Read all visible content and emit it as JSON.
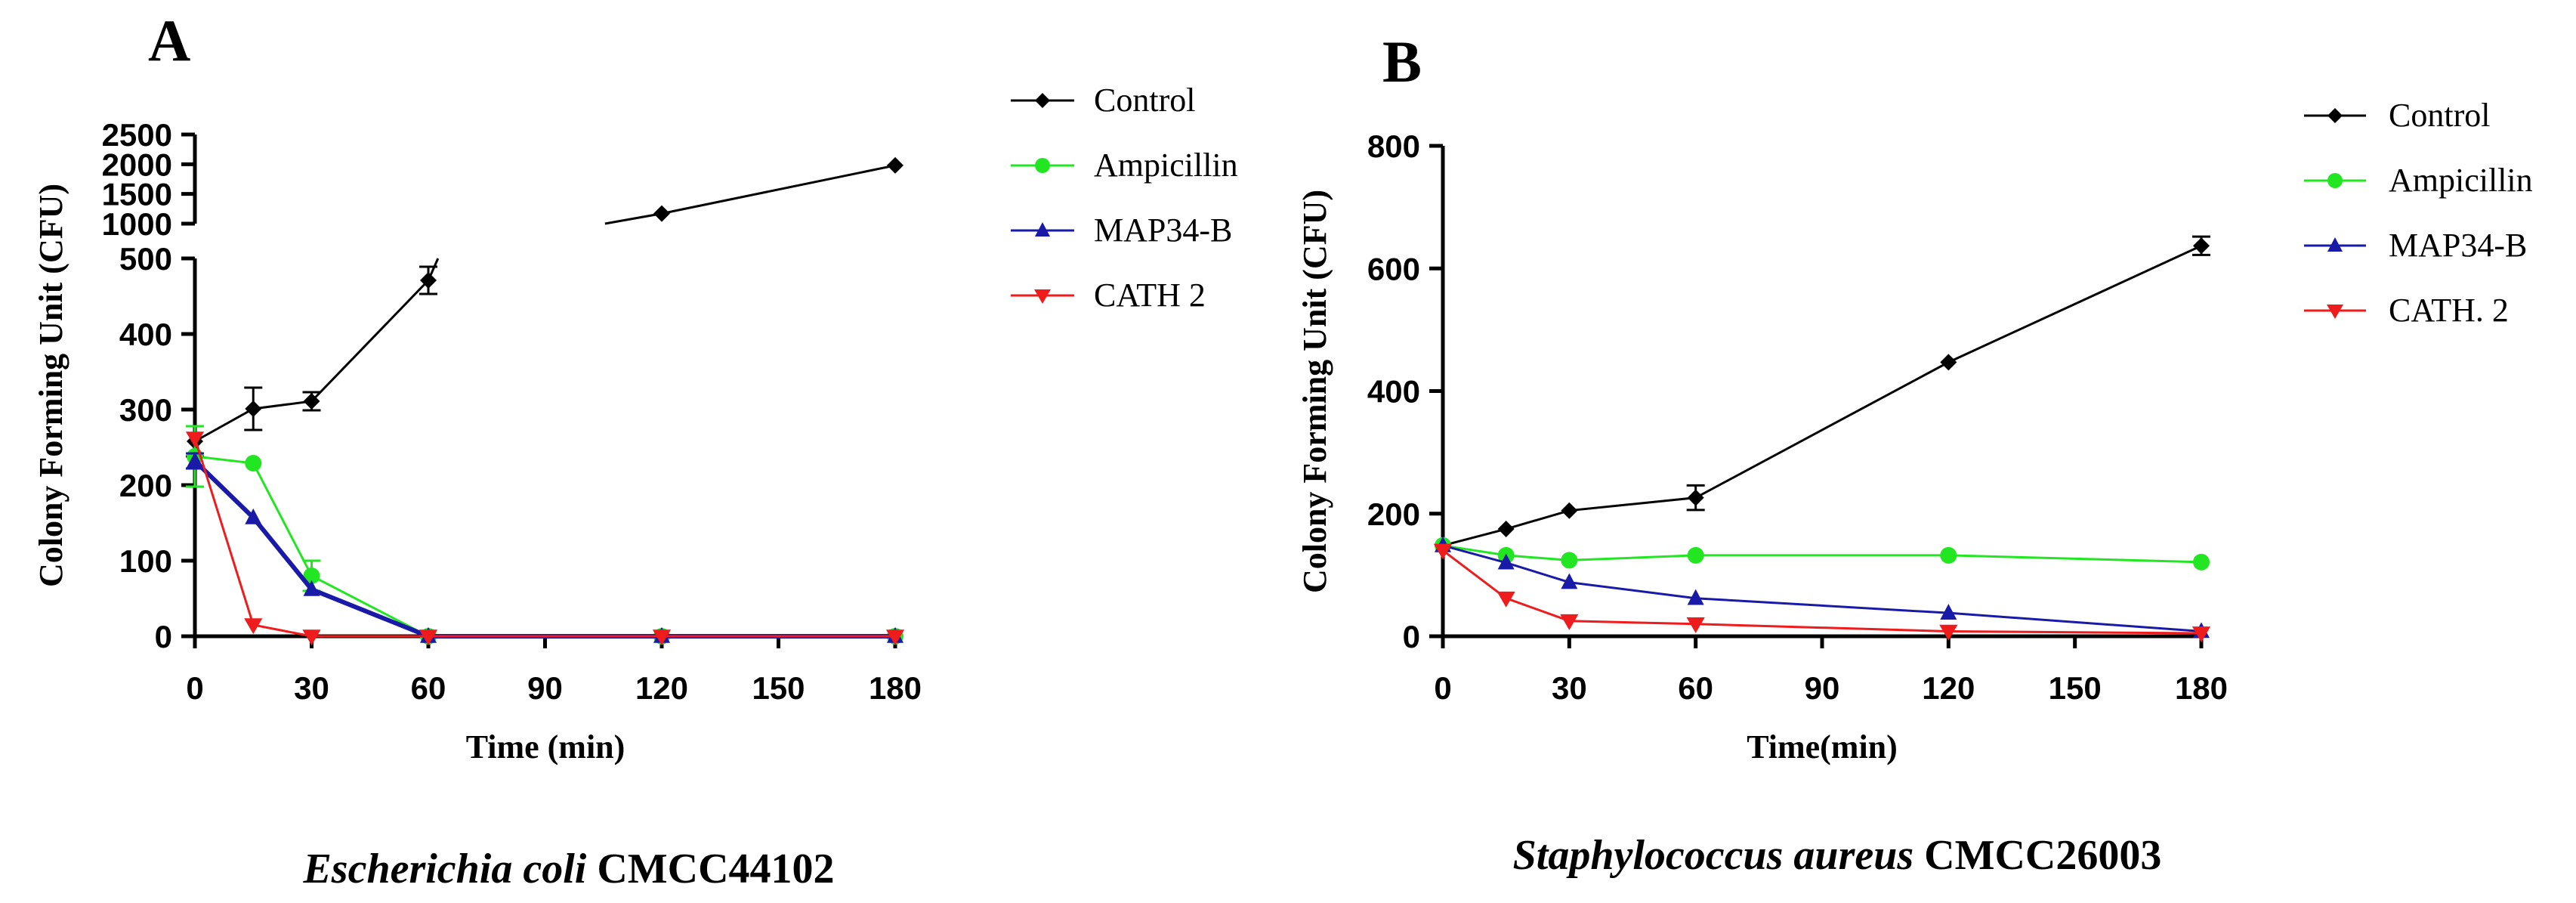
{
  "chart_data": [
    {
      "type": "line",
      "panel_label": "A",
      "title": "",
      "xlabel": "Time (min)",
      "ylabel": "Colony Forming Unit (CFU)",
      "caption_organism": "Escherichia coli",
      "caption_strain": " CMCC44102",
      "x_ticks": [
        "0",
        "30",
        "60",
        "90",
        "120",
        "150",
        "180"
      ],
      "y_ticks_lower": [
        "0",
        "100",
        "200",
        "300",
        "400",
        "500"
      ],
      "y_ticks_upper": [
        "1000",
        "1500",
        "2000",
        "2500"
      ],
      "xlim": [
        0,
        180
      ],
      "ylim_lower": [
        0,
        500
      ],
      "ylim_upper": [
        1000,
        2500
      ],
      "axis_break": true,
      "legend_position": "top-right",
      "series": [
        {
          "name": "Control",
          "color": "#000000",
          "marker": "diamond",
          "x": [
            0,
            15,
            30,
            60,
            120,
            180
          ],
          "y": [
            258,
            301,
            311,
            471,
            1170,
            1980
          ],
          "err": [
            20,
            28,
            12,
            18,
            0,
            0
          ]
        },
        {
          "name": "Ampicillin",
          "color": "#22e622",
          "marker": "circle",
          "x": [
            0,
            15,
            30,
            60,
            120,
            180
          ],
          "y": [
            238,
            229,
            80,
            0,
            0,
            0
          ],
          "err": [
            40,
            0,
            20,
            0,
            0,
            0
          ]
        },
        {
          "name": "MAP34-B",
          "color": "#1a1aa8",
          "marker": "triangle-up",
          "x": [
            0,
            15,
            30,
            60,
            120,
            180
          ],
          "y": [
            232,
            157,
            62,
            0,
            0,
            0
          ],
          "err": [
            10,
            0,
            0,
            0,
            0,
            0
          ]
        },
        {
          "name": "CATH 2",
          "color": "#ee1c1c",
          "marker": "triangle-down",
          "x": [
            0,
            15,
            30,
            60,
            120,
            180
          ],
          "y": [
            262,
            15,
            0,
            0,
            0,
            0
          ],
          "err": [
            0,
            0,
            0,
            0,
            0,
            0
          ]
        }
      ]
    },
    {
      "type": "line",
      "panel_label": "B",
      "title": "",
      "xlabel": "Time(min)",
      "ylabel": "Colony Forming Unit (CFU)",
      "caption_organism": "Staphylococcus aureus",
      "caption_strain": " CMCC26003",
      "x_ticks": [
        "0",
        "30",
        "60",
        "90",
        "120",
        "150",
        "180"
      ],
      "y_ticks": [
        "0",
        "200",
        "400",
        "600",
        "800"
      ],
      "xlim": [
        0,
        180
      ],
      "ylim": [
        0,
        800
      ],
      "legend_position": "top-right",
      "series": [
        {
          "name": "Control",
          "color": "#000000",
          "marker": "diamond",
          "x": [
            0,
            15,
            30,
            60,
            120,
            180
          ],
          "y": [
            148,
            175,
            205,
            226,
            447,
            637
          ],
          "err": [
            0,
            0,
            0,
            20,
            0,
            15
          ]
        },
        {
          "name": "Ampicillin",
          "color": "#22e622",
          "marker": "circle",
          "x": [
            0,
            15,
            30,
            60,
            120,
            180
          ],
          "y": [
            148,
            132,
            124,
            132,
            132,
            121
          ],
          "err": [
            0,
            0,
            0,
            0,
            0,
            0
          ]
        },
        {
          "name": "MAP34-B",
          "color": "#1a1aa8",
          "marker": "triangle-up",
          "x": [
            0,
            15,
            30,
            60,
            120,
            180
          ],
          "y": [
            148,
            120,
            88,
            62,
            38,
            8
          ],
          "err": [
            0,
            0,
            0,
            0,
            0,
            0
          ]
        },
        {
          "name": "CATH. 2",
          "color": "#ee1c1c",
          "marker": "triangle-down",
          "x": [
            0,
            15,
            30,
            60,
            120,
            180
          ],
          "y": [
            140,
            62,
            25,
            20,
            8,
            5
          ],
          "err": [
            0,
            0,
            0,
            0,
            0,
            0
          ]
        }
      ]
    }
  ]
}
